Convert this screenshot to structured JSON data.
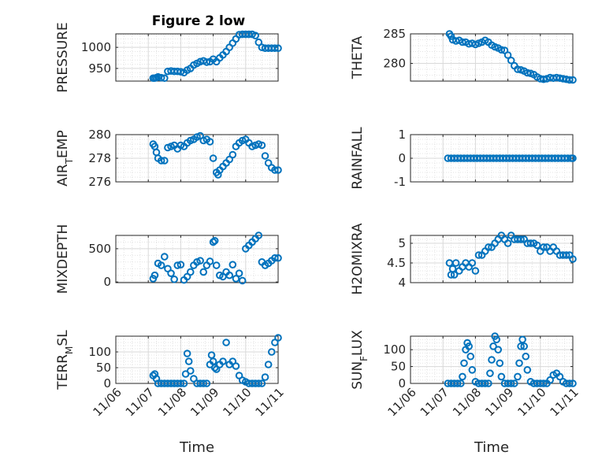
{
  "figure_title": "Figure 2 low",
  "xlabel": "Time",
  "x_ticks": [
    "11/06",
    "11/07",
    "11/08",
    "11/09",
    "11/10",
    "11/11"
  ],
  "marker_color": "#0072BD",
  "chart_data": [
    {
      "type": "scatter",
      "ylabel": "PRESSURE",
      "x": [
        1.15,
        1.2,
        1.25,
        1.3,
        1.4,
        1.5,
        1.6,
        1.7,
        1.8,
        1.9,
        2.0,
        2.1,
        2.2,
        2.3,
        2.4,
        2.5,
        2.6,
        2.7,
        2.8,
        2.9,
        3.0,
        3.1,
        3.2,
        3.3,
        3.4,
        3.5,
        3.6,
        3.7,
        3.8,
        3.9,
        4.0,
        4.1,
        4.2,
        4.3,
        4.4,
        4.5,
        4.6,
        4.7,
        4.8,
        4.9,
        5.0
      ],
      "y": [
        927,
        927,
        928,
        930,
        928,
        927,
        943,
        944,
        943,
        943,
        942,
        940,
        946,
        950,
        958,
        962,
        966,
        968,
        965,
        966,
        972,
        966,
        975,
        982,
        990,
        1000,
        1010,
        1020,
        1030,
        1031,
        1031,
        1031,
        1031,
        1028,
        1012,
        1000,
        998,
        998,
        998,
        998,
        998
      ],
      "ylim": [
        920,
        1032
      ],
      "yticks": [
        950,
        1000
      ]
    },
    {
      "type": "scatter",
      "ylabel": "THETA",
      "x": [
        1.2,
        1.25,
        1.3,
        1.4,
        1.5,
        1.6,
        1.7,
        1.8,
        1.9,
        2.0,
        2.1,
        2.2,
        2.3,
        2.4,
        2.5,
        2.6,
        2.7,
        2.8,
        2.9,
        3.0,
        3.1,
        3.2,
        3.3,
        3.4,
        3.5,
        3.6,
        3.7,
        3.8,
        3.9,
        4.0,
        4.1,
        4.2,
        4.3,
        4.4,
        4.5,
        4.6,
        4.7,
        4.8,
        4.9,
        5.0
      ],
      "y": [
        285,
        284.6,
        284,
        283.8,
        283.9,
        283.6,
        283.6,
        283.3,
        283.4,
        283.2,
        283.4,
        283.6,
        283.9,
        283.6,
        283.1,
        282.8,
        282.6,
        282.3,
        282.2,
        281.4,
        280.5,
        279.6,
        279.0,
        278.9,
        278.7,
        278.4,
        278.3,
        278.1,
        277.7,
        277.4,
        277.3,
        277.4,
        277.6,
        277.5,
        277.6,
        277.5,
        277.4,
        277.3,
        277.2,
        277.2
      ],
      "ylim": [
        277,
        285
      ],
      "yticks": [
        280,
        285
      ]
    },
    {
      "type": "scatter",
      "ylabel": "AIR_TEMP",
      "x": [
        1.15,
        1.2,
        1.25,
        1.3,
        1.4,
        1.5,
        1.6,
        1.7,
        1.8,
        1.9,
        2.0,
        2.1,
        2.2,
        2.3,
        2.4,
        2.5,
        2.6,
        2.7,
        2.8,
        2.9,
        3.0,
        3.1,
        3.15,
        3.2,
        3.3,
        3.4,
        3.5,
        3.6,
        3.7,
        3.8,
        3.9,
        4.0,
        4.1,
        4.2,
        4.3,
        4.4,
        4.5,
        4.6,
        4.7,
        4.8,
        4.9,
        5.0
      ],
      "y": [
        279.2,
        279.0,
        278.5,
        278.0,
        277.8,
        277.8,
        278.9,
        279.0,
        279.1,
        278.8,
        279.1,
        279.0,
        279.3,
        279.5,
        279.6,
        279.8,
        279.9,
        279.5,
        279.6,
        279.4,
        278.0,
        276.8,
        276.6,
        277.0,
        277.3,
        277.6,
        277.9,
        278.3,
        279.0,
        279.3,
        279.5,
        279.6,
        279.3,
        279.0,
        279.1,
        279.2,
        279.1,
        278.2,
        277.6,
        277.2,
        277.0,
        277.0
      ],
      "ylim": [
        276,
        280
      ],
      "yticks": [
        276,
        278,
        280
      ]
    },
    {
      "type": "scatter",
      "ylabel": "RAINFALL",
      "x": [
        1.15,
        1.25,
        1.35,
        1.45,
        1.55,
        1.65,
        1.75,
        1.85,
        1.95,
        2.05,
        2.15,
        2.25,
        2.35,
        2.45,
        2.55,
        2.65,
        2.75,
        2.85,
        2.95,
        3.05,
        3.15,
        3.25,
        3.35,
        3.45,
        3.55,
        3.65,
        3.75,
        3.85,
        3.95,
        4.05,
        4.15,
        4.25,
        4.35,
        4.45,
        4.55,
        4.65,
        4.75,
        4.85,
        4.95,
        5.0
      ],
      "y": [
        0,
        0,
        0,
        0,
        0,
        0,
        0,
        0,
        0,
        0,
        0,
        0,
        0,
        0,
        0,
        0,
        0,
        0,
        0,
        0,
        0,
        0,
        0,
        0,
        0,
        0,
        0,
        0,
        0,
        0,
        0,
        0,
        0,
        0,
        0,
        0,
        0,
        0,
        0,
        0
      ],
      "ylim": [
        -1,
        1
      ],
      "yticks": [
        -1,
        0,
        1
      ]
    },
    {
      "type": "scatter",
      "ylabel": "MIXDEPTH",
      "x": [
        1.15,
        1.2,
        1.3,
        1.4,
        1.5,
        1.6,
        1.7,
        1.8,
        1.9,
        2.0,
        2.1,
        2.2,
        2.3,
        2.4,
        2.5,
        2.6,
        2.7,
        2.8,
        2.9,
        3.0,
        3.05,
        3.1,
        3.2,
        3.3,
        3.4,
        3.5,
        3.6,
        3.7,
        3.8,
        3.9,
        4.0,
        4.1,
        4.2,
        4.3,
        4.4,
        4.5,
        4.6,
        4.7,
        4.8,
        4.9,
        5.0
      ],
      "y": [
        50,
        100,
        280,
        250,
        380,
        200,
        130,
        40,
        250,
        260,
        30,
        80,
        150,
        250,
        300,
        320,
        150,
        250,
        310,
        600,
        620,
        250,
        100,
        80,
        150,
        100,
        260,
        50,
        130,
        20,
        500,
        550,
        600,
        650,
        700,
        300,
        250,
        280,
        320,
        360,
        360
      ],
      "ylim": [
        -10,
        700
      ],
      "yticks": [
        0,
        500
      ]
    },
    {
      "type": "scatter",
      "ylabel": "H2OMIXRA",
      "x": [
        1.2,
        1.25,
        1.3,
        1.35,
        1.4,
        1.5,
        1.6,
        1.7,
        1.8,
        1.9,
        2.0,
        2.1,
        2.2,
        2.3,
        2.4,
        2.5,
        2.6,
        2.7,
        2.8,
        2.9,
        3.0,
        3.1,
        3.2,
        3.3,
        3.4,
        3.5,
        3.6,
        3.7,
        3.8,
        3.9,
        4.0,
        4.1,
        4.2,
        4.3,
        4.4,
        4.5,
        4.6,
        4.7,
        4.8,
        4.9,
        5.0
      ],
      "y": [
        4.5,
        4.2,
        4.35,
        4.2,
        4.5,
        4.3,
        4.4,
        4.5,
        4.4,
        4.5,
        4.3,
        4.7,
        4.7,
        4.8,
        4.9,
        4.9,
        5.0,
        5.1,
        5.2,
        5.1,
        5.0,
        5.2,
        5.1,
        5.1,
        5.1,
        5.1,
        5.0,
        5.0,
        5.0,
        4.95,
        4.8,
        4.9,
        4.9,
        4.8,
        4.9,
        4.8,
        4.7,
        4.7,
        4.7,
        4.7,
        4.6
      ],
      "ylim": [
        4,
        5.2
      ],
      "yticks": [
        4,
        4.5,
        5
      ]
    },
    {
      "type": "scatter",
      "ylabel": "TERR_MSL",
      "x": [
        1.15,
        1.2,
        1.25,
        1.3,
        1.4,
        1.5,
        1.6,
        1.7,
        1.8,
        1.9,
        2.0,
        2.1,
        2.15,
        2.2,
        2.25,
        2.3,
        2.4,
        2.5,
        2.6,
        2.7,
        2.8,
        2.9,
        2.95,
        3.0,
        3.05,
        3.1,
        3.2,
        3.3,
        3.4,
        3.5,
        3.6,
        3.7,
        3.8,
        3.9,
        4.0,
        4.1,
        4.2,
        4.3,
        4.4,
        4.5,
        4.6,
        4.7,
        4.8,
        4.9,
        5.0
      ],
      "y": [
        25,
        30,
        15,
        0,
        0,
        0,
        0,
        0,
        0,
        0,
        0,
        0,
        30,
        95,
        70,
        40,
        15,
        0,
        0,
        0,
        0,
        60,
        90,
        70,
        50,
        45,
        60,
        70,
        130,
        60,
        70,
        55,
        25,
        10,
        5,
        0,
        0,
        0,
        0,
        0,
        20,
        60,
        100,
        130,
        145
      ],
      "ylim": [
        0,
        150
      ],
      "yticks": [
        0,
        50,
        100
      ]
    },
    {
      "type": "scatter",
      "ylabel": "SUN_FLUX",
      "x": [
        1.15,
        1.25,
        1.35,
        1.45,
        1.55,
        1.6,
        1.65,
        1.7,
        1.75,
        1.8,
        1.85,
        1.9,
        2.0,
        2.1,
        2.2,
        2.3,
        2.4,
        2.45,
        2.5,
        2.55,
        2.6,
        2.65,
        2.7,
        2.75,
        2.8,
        2.9,
        3.0,
        3.1,
        3.2,
        3.3,
        3.35,
        3.4,
        3.45,
        3.5,
        3.55,
        3.6,
        3.7,
        3.8,
        3.9,
        4.0,
        4.1,
        4.2,
        4.3,
        4.4,
        4.5,
        4.6,
        4.7,
        4.8,
        4.9,
        5.0
      ],
      "y": [
        0,
        0,
        0,
        0,
        0,
        20,
        60,
        100,
        120,
        110,
        80,
        40,
        5,
        0,
        0,
        0,
        0,
        30,
        70,
        110,
        140,
        130,
        100,
        60,
        20,
        0,
        0,
        0,
        0,
        20,
        60,
        110,
        130,
        110,
        80,
        40,
        5,
        0,
        0,
        0,
        0,
        0,
        10,
        25,
        30,
        20,
        5,
        0,
        0,
        0
      ],
      "ylim": [
        0,
        140
      ],
      "yticks": [
        0,
        50,
        100
      ]
    }
  ]
}
